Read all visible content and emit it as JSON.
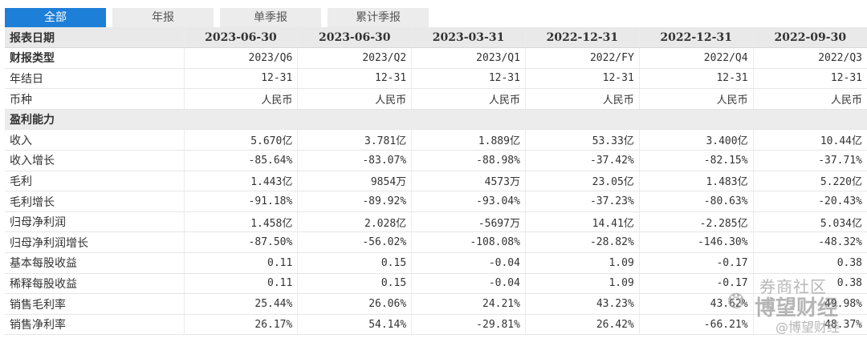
{
  "tabs": [
    {
      "label": "全部",
      "active": true
    },
    {
      "label": "年报",
      "active": false
    },
    {
      "label": "单季报",
      "active": false
    },
    {
      "label": "累计季报",
      "active": false
    }
  ],
  "table": {
    "header": {
      "label": "报表日期",
      "values": [
        "2023-06-30",
        "2023-06-30",
        "2023-03-31",
        "2022-12-31",
        "2022-12-31",
        "2022-09-30"
      ]
    },
    "rows": [
      {
        "label": "财报类型",
        "bold": true,
        "values": [
          "2023/Q6",
          "2023/Q2",
          "2023/Q1",
          "2022/FY",
          "2022/Q4",
          "2022/Q3"
        ]
      },
      {
        "label": "年结日",
        "values": [
          "12-31",
          "12-31",
          "12-31",
          "12-31",
          "12-31",
          "12-31"
        ]
      },
      {
        "label": "币种",
        "values": [
          "人民币",
          "人民币",
          "人民币",
          "人民币",
          "人民币",
          "人民币"
        ]
      },
      {
        "label": "盈利能力",
        "section": true,
        "values": []
      },
      {
        "label": "收入",
        "values": [
          "5.670亿",
          "3.781亿",
          "1.889亿",
          "53.33亿",
          "3.400亿",
          "10.44亿"
        ]
      },
      {
        "label": "收入增长",
        "values": [
          "-85.64%",
          "-83.07%",
          "-88.98%",
          "-37.42%",
          "-82.15%",
          "-37.71%"
        ]
      },
      {
        "label": "毛利",
        "values": [
          "1.443亿",
          "9854万",
          "4573万",
          "23.05亿",
          "1.483亿",
          "5.220亿"
        ]
      },
      {
        "label": "毛利增长",
        "values": [
          "-91.18%",
          "-89.92%",
          "-93.04%",
          "-37.23%",
          "-80.63%",
          "-20.43%"
        ]
      },
      {
        "label": "归母净利润",
        "values": [
          "1.458亿",
          "2.028亿",
          "-5697万",
          "14.41亿",
          "-2.285亿",
          "5.034亿"
        ]
      },
      {
        "label": "归母净利润增长",
        "values": [
          "-87.50%",
          "-56.02%",
          "-108.08%",
          "-28.82%",
          "-146.30%",
          "-48.32%"
        ]
      },
      {
        "label": "基本每股收益",
        "values": [
          "0.11",
          "0.15",
          "-0.04",
          "1.09",
          "-0.17",
          "0.38"
        ]
      },
      {
        "label": "稀释每股收益",
        "values": [
          "0.11",
          "0.15",
          "-0.04",
          "1.09",
          "-0.17",
          "0.38"
        ]
      },
      {
        "label": "销售毛利率",
        "values": [
          "25.44%",
          "26.06%",
          "24.21%",
          "43.23%",
          "43.62%",
          "49.98%"
        ]
      },
      {
        "label": "销售净利率",
        "values": [
          "26.17%",
          "54.14%",
          "-29.81%",
          "26.42%",
          "-66.21%",
          "48.37%"
        ]
      }
    ]
  },
  "watermark": {
    "line1": "券商社区",
    "line2": "博望财经",
    "line3": "@博望财经",
    "icon": "wechat-icon"
  }
}
